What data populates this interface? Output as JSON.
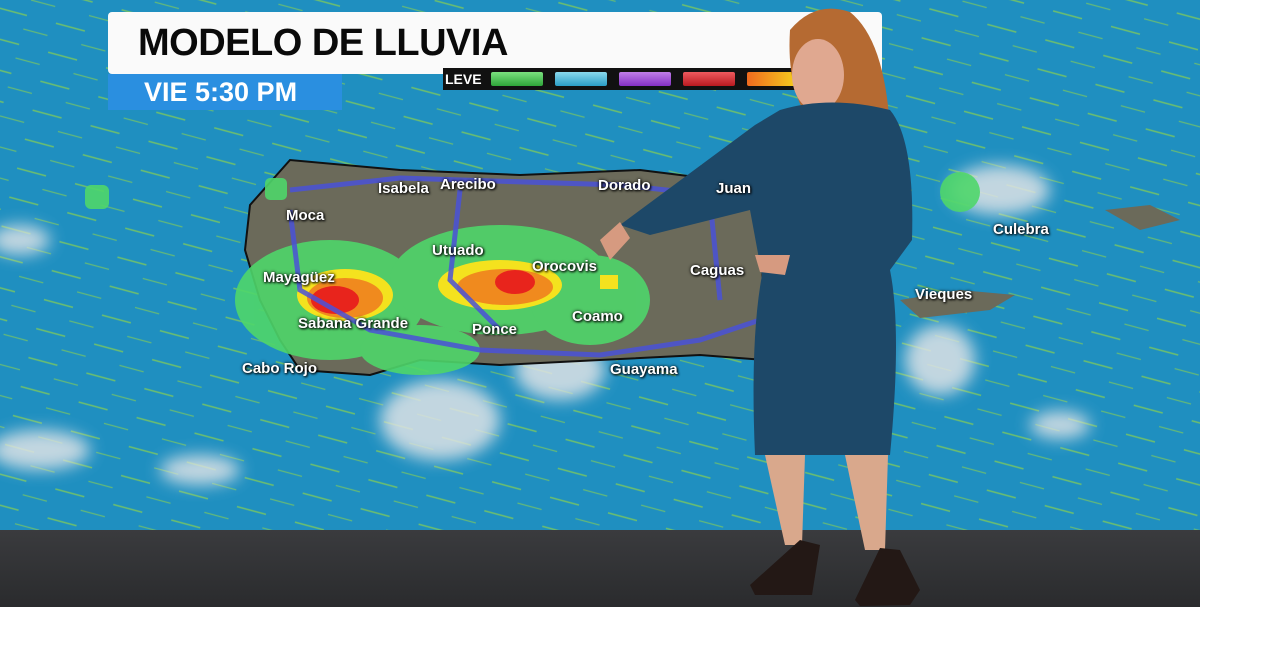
{
  "graphic": {
    "title": "MODELO DE LLUVIA",
    "time": "VIE 5:30 PM",
    "legend": {
      "label": "LEVE",
      "colors": [
        "#3ec24a",
        "#3fb6d8",
        "#9a45d6",
        "#d8262c",
        "#f0a020"
      ]
    }
  },
  "map": {
    "colors": {
      "ocean": "#1f8fc0",
      "land": "#6b6a5a",
      "rain_light": "#4fd66a",
      "rain_heavy": "#e8241c",
      "roads": "#4a52d8"
    },
    "cities": [
      "Isabela",
      "Arecibo",
      "Dorado",
      "Juan",
      "Moca",
      "Utuado",
      "Mayagüez",
      "Orocovis",
      "Caguas",
      "Sabana Grande",
      "Ponce",
      "Coamo",
      "Cabo Rojo",
      "Guayama",
      "Culebra",
      "Vieques"
    ]
  }
}
